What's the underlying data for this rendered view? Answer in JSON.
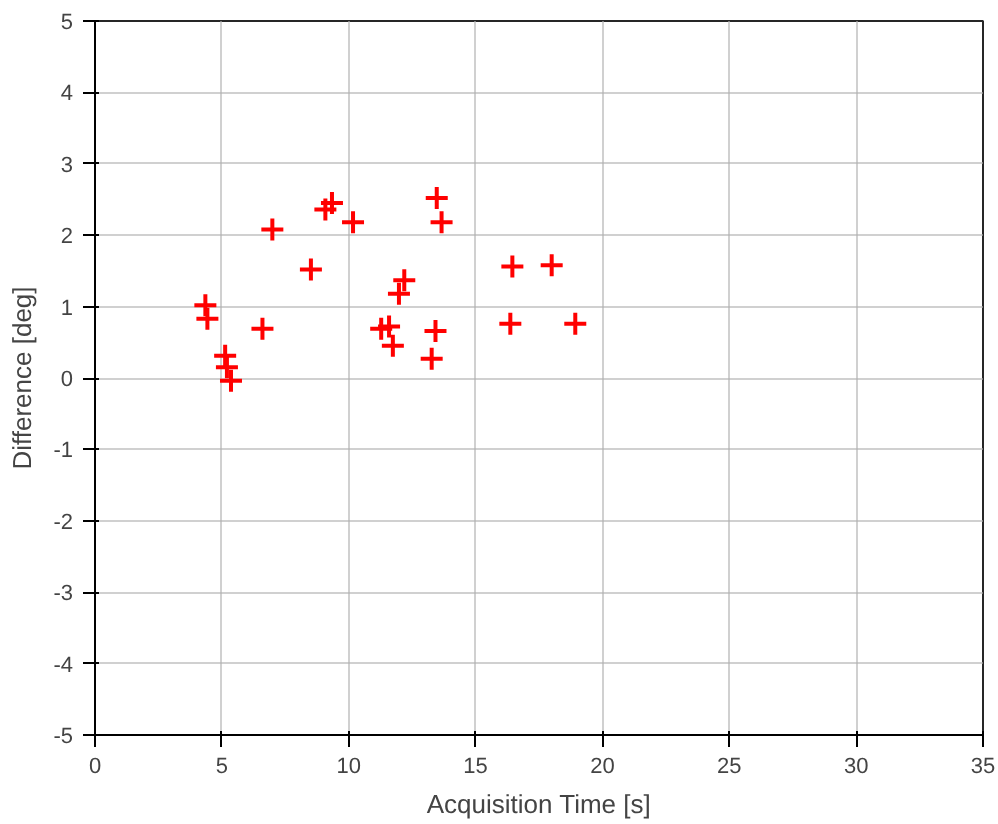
{
  "chart_data": {
    "type": "scatter",
    "xlabel": "Acquisition Time [s]",
    "ylabel": "Difference [deg]",
    "x": [
      4.35,
      4.43,
      5.13,
      5.2,
      5.36,
      6.6,
      6.99,
      8.51,
      9.08,
      9.34,
      10.17,
      11.28,
      11.59,
      11.74,
      11.98,
      12.19,
      13.27,
      13.42,
      13.47,
      13.66,
      16.45,
      16.37,
      18.0,
      18.93
    ],
    "series": [
      {
        "color": "#ff0000",
        "values": [
          1.02,
          0.83,
          0.31,
          0.15,
          -0.04,
          0.69,
          2.08,
          1.52,
          2.36,
          2.45,
          2.18,
          0.69,
          0.72,
          0.45,
          1.18,
          1.37,
          0.27,
          0.66,
          2.52,
          2.18,
          1.56,
          0.76,
          1.58,
          0.76
        ]
      }
    ],
    "xlim": [
      0,
      35
    ],
    "ylim": [
      -5,
      5
    ],
    "xticks": [
      0,
      5,
      10,
      15,
      20,
      25,
      30,
      35
    ],
    "yticks": [
      -5,
      -4,
      -3,
      -2,
      -1,
      0,
      1,
      2,
      3,
      4,
      5
    ],
    "grid": true,
    "marker": "cross"
  }
}
